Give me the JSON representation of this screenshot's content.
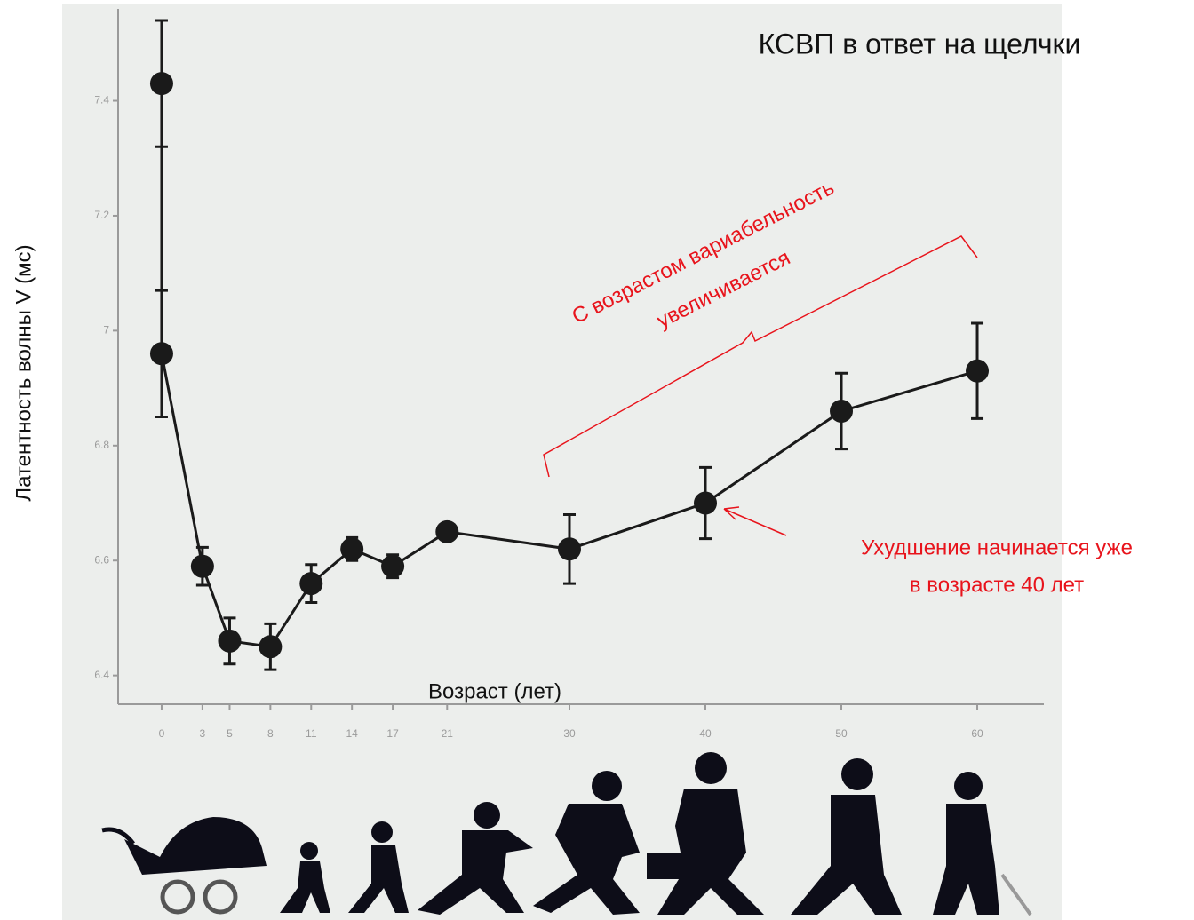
{
  "chart_data": {
    "type": "errorbar",
    "title": "КСВП в ответ на щелчки",
    "x_label": "Возраст (лет)",
    "y_label": "Латентность волны V (мс)",
    "x": [
      0,
      0,
      3,
      5,
      8,
      11,
      14,
      17,
      21,
      30,
      40,
      50,
      60
    ],
    "series": [
      {
        "color": "#1a1a1a",
        "values": [
          7.43,
          6.96,
          6.59,
          6.46,
          6.45,
          6.56,
          6.62,
          6.59,
          6.65,
          6.62,
          6.7,
          6.86,
          6.93
        ],
        "errors": [
          0.11,
          0.11,
          0.033,
          0.04,
          0.04,
          0.033,
          0.02,
          0.02,
          0.01,
          0.06,
          0.062,
          0.066,
          0.083
        ]
      }
    ],
    "xlim": [
      -3.2,
      64.9
    ],
    "ylim": [
      6.35,
      7.56
    ],
    "xticks": [
      0,
      3,
      5,
      8,
      11,
      14,
      17,
      21,
      30,
      40,
      50,
      60
    ],
    "yticks": [
      {
        "value": 6.4,
        "label": "6.4"
      },
      {
        "value": 6.6,
        "label": "6.6"
      },
      {
        "value": 6.8,
        "label": "6.8"
      },
      7,
      {
        "value": 7.2,
        "label": "7.2"
      },
      {
        "value": 7.4,
        "label": "7.4"
      }
    ],
    "annotations": [
      {
        "lines": [
          "С возрастом вариабельность",
          "увеличивается"
        ],
        "color": "#e8141c"
      },
      {
        "lines": [
          "Ухудшение начинается уже",
          "в возрасте 40 лет"
        ],
        "color": "#e8141c"
      }
    ]
  }
}
